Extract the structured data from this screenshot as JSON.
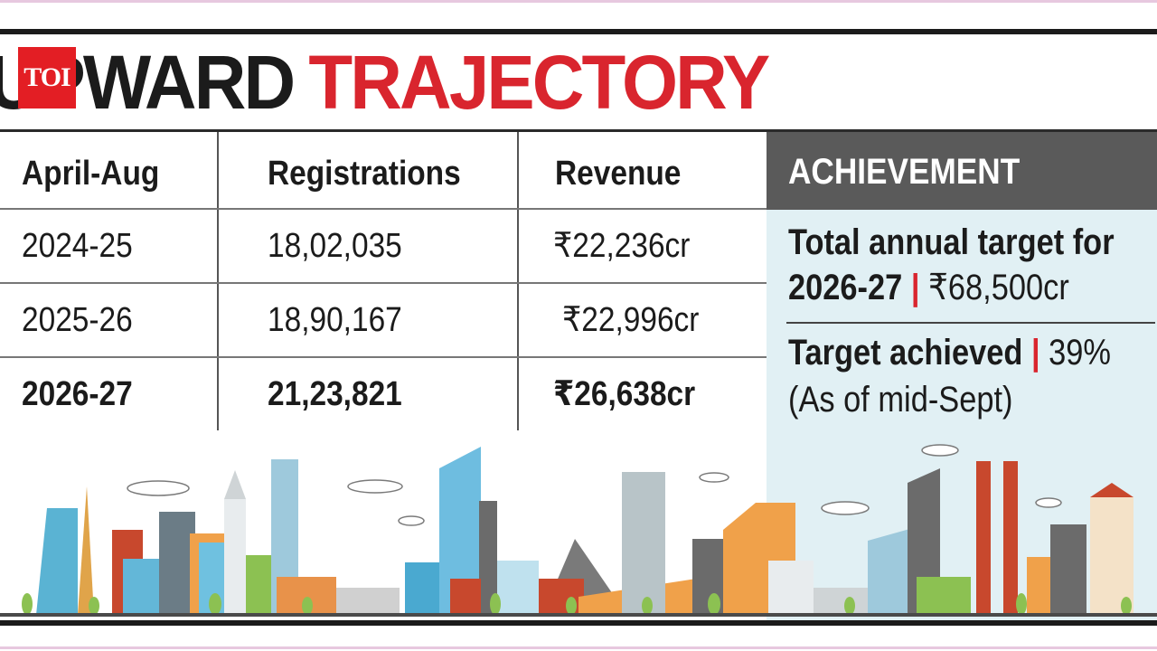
{
  "brand": {
    "logo_text": "TOI"
  },
  "headline": {
    "word1": "UPWARD",
    "word2": "TRAJECTORY"
  },
  "table": {
    "headers": [
      "April-Aug",
      "Registrations",
      "Revenue"
    ],
    "rows": [
      {
        "period": "2024-25",
        "registrations": "18,02,035",
        "revenue": "₹22,236cr"
      },
      {
        "period": "2025-26",
        "registrations": "18,90,167",
        "revenue": "₹22,996cr"
      },
      {
        "period": "2026-27",
        "registrations": "21,23,821",
        "revenue": "₹26,638cr"
      }
    ]
  },
  "achievement": {
    "title": "ACHIEVEMENT",
    "target_label_line1": "Total annual target for",
    "target_label_line2": "2026-27",
    "target_value": "₹68,500cr",
    "achieved_label": "Target achieved",
    "achieved_value": "39%",
    "achieved_note": "(As of mid-Sept)",
    "separator": "|"
  },
  "colors": {
    "accent_red": "#d9252e",
    "panel_bg": "#e1f0f4",
    "panel_header": "#5a5a5a",
    "text": "#1b1b1b"
  }
}
